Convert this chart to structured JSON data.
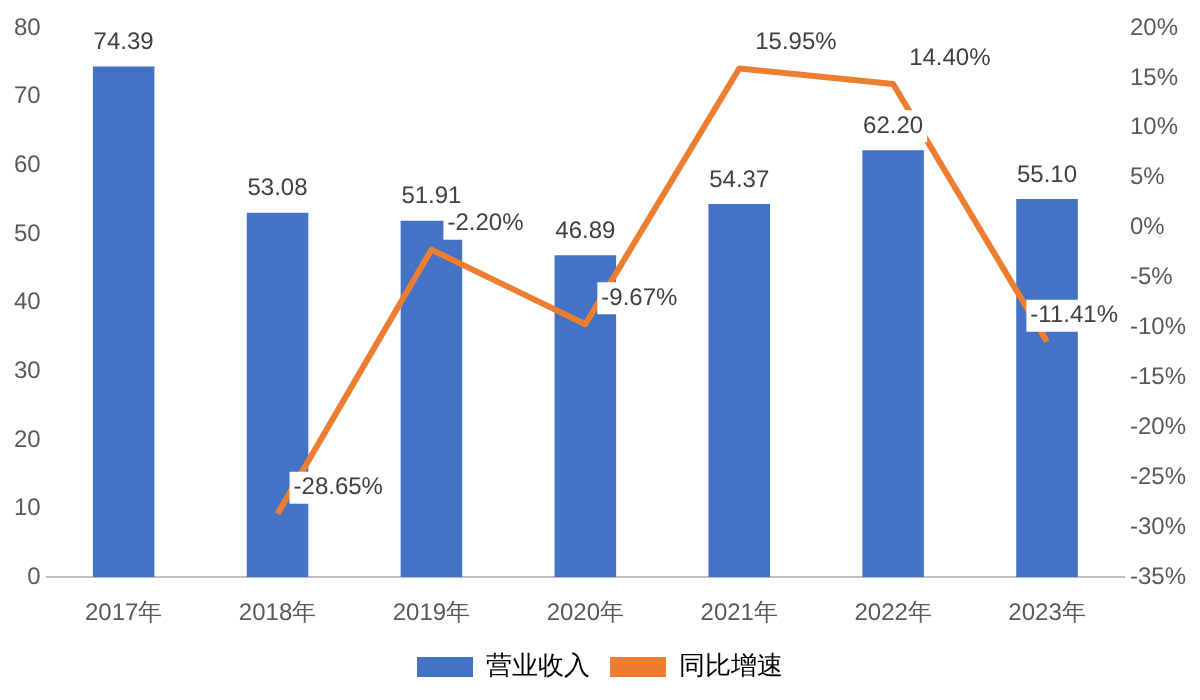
{
  "chart_data": {
    "type": "bar",
    "categories": [
      "2017年",
      "2018年",
      "2019年",
      "2020年",
      "2021年",
      "2022年",
      "2023年"
    ],
    "series": [
      {
        "name": "营业收入",
        "color": "#4472c4",
        "values": [
          74.39,
          53.08,
          51.91,
          46.89,
          54.37,
          62.2,
          55.1
        ],
        "value_labels": [
          "74.39",
          "53.08",
          "51.91",
          "46.89",
          "54.37",
          "62.20",
          "55.10"
        ]
      },
      {
        "name": "同比增速",
        "type": "line",
        "axis": "y2",
        "color": "#ed7d31",
        "values": [
          null,
          -28.65,
          -2.2,
          -9.67,
          15.95,
          14.4,
          -11.41
        ],
        "value_labels": [
          null,
          "-28.65%",
          "-2.20%",
          "-9.67%",
          "15.95%",
          "14.40%",
          "-11.41%"
        ]
      }
    ],
    "ylim": [
      0,
      80
    ],
    "yticks": [
      0,
      10,
      20,
      30,
      40,
      50,
      60,
      70,
      80
    ],
    "y2lim": [
      -35,
      20
    ],
    "y2ticks": [
      {
        "value": -35,
        "label": "-35%"
      },
      {
        "value": -30,
        "label": "-30%"
      },
      {
        "value": -25,
        "label": "-25%"
      },
      {
        "value": -20,
        "label": "-20%"
      },
      {
        "value": -15,
        "label": "-15%"
      },
      {
        "value": -10,
        "label": "-10%"
      },
      {
        "value": -5,
        "label": "-5%"
      },
      {
        "value": 0,
        "label": "0%"
      },
      {
        "value": 5,
        "label": "5%"
      },
      {
        "value": 10,
        "label": "10%"
      },
      {
        "value": 15,
        "label": "15%"
      },
      {
        "value": 20,
        "label": "20%"
      }
    ],
    "legend": "bottom",
    "marker": "none",
    "grid": false
  }
}
